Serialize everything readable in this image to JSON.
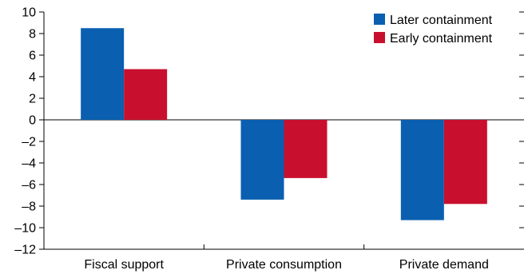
{
  "chart_data": {
    "type": "bar",
    "title": "",
    "xlabel": "",
    "ylabel": "",
    "ylim": [
      -12,
      10
    ],
    "yticks": [
      10,
      8,
      6,
      4,
      2,
      0,
      -2,
      -4,
      -6,
      -8,
      -10,
      -12
    ],
    "ytick_labels": [
      "10",
      "8",
      "6",
      "4",
      "2",
      "0",
      "–2",
      "–4",
      "–6",
      "–8",
      "–10",
      "–12"
    ],
    "categories": [
      "Fiscal support",
      "Private consumption",
      "Private demand"
    ],
    "series": [
      {
        "name": "Later containment",
        "color": "#0a5fb0",
        "values": [
          8.5,
          -7.4,
          -9.3
        ]
      },
      {
        "name": "Early containment",
        "color": "#c8102e",
        "values": [
          4.7,
          -5.4,
          -7.8
        ]
      }
    ],
    "legend_position": "top-right",
    "grid": false
  }
}
